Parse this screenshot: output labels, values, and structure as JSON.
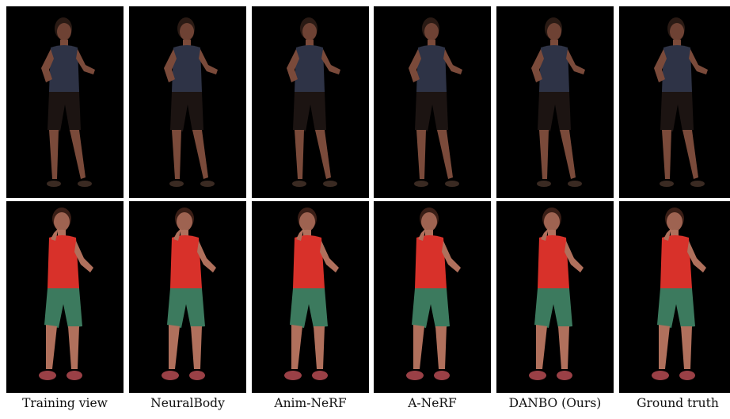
{
  "columns": [
    {
      "label": "Training view"
    },
    {
      "label": "NeuralBody"
    },
    {
      "label": "Anim-NeRF"
    },
    {
      "label": "A-NeRF"
    },
    {
      "label": "DANBO (Ours)"
    },
    {
      "label": "Ground truth"
    }
  ],
  "rows": [
    {
      "subject": "person-dark-tank-top",
      "colors": {
        "top": "#2e3346",
        "shorts": "#1c1412",
        "skin": "#7a4a3a",
        "hair": "#2a1a14",
        "shoes": "#3a2a22"
      }
    },
    {
      "subject": "person-red-tank-top",
      "colors": {
        "top": "#d8312a",
        "shorts": "#3c7a5e",
        "skin": "#b0705c",
        "hair": "#3a1e16",
        "shoes": "#9a4046"
      }
    }
  ]
}
